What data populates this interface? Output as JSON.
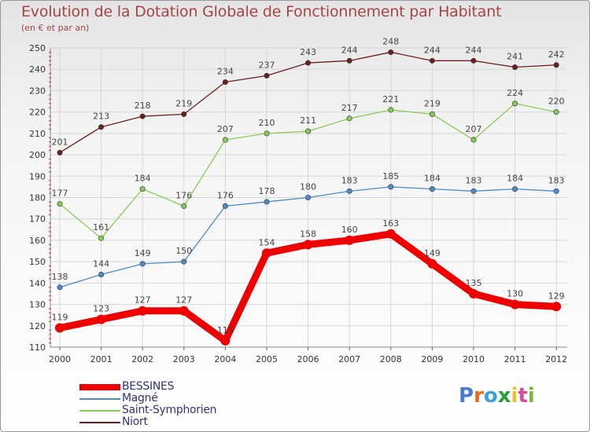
{
  "header": {
    "title": "Evolution de la Dotation Globale de Fonctionnement par Habitant",
    "subtitle": "(en € et par an)"
  },
  "logo": {
    "text": "Proxiti",
    "colors": [
      "#4a7ad8",
      "#e26b1f",
      "#3aa3d6",
      "#2a9d3c",
      "#e9c22a",
      "#d84a9a",
      "#7ab83a"
    ]
  },
  "chart_data": {
    "type": "line",
    "title": "Evolution de la Dotation Globale de Fonctionnement par Habitant",
    "subtitle": "(en € et par an)",
    "xlabel": "",
    "ylabel": "",
    "ylim": [
      110,
      250
    ],
    "y_ticks": [
      110,
      120,
      130,
      140,
      150,
      160,
      170,
      180,
      190,
      200,
      210,
      220,
      230,
      240,
      250
    ],
    "categories": [
      "2000",
      "2001",
      "2002",
      "2003",
      "2004",
      "2005",
      "2006",
      "2007",
      "2008",
      "2009",
      "2010",
      "2011",
      "2012"
    ],
    "legend_position": "bottom-left",
    "series": [
      {
        "name": "BESSINES",
        "color": "#ee0000",
        "values": [
          119,
          123,
          127,
          127,
          113,
          154,
          158,
          160,
          163,
          149,
          135,
          130,
          129
        ]
      },
      {
        "name": "Magné",
        "color": "#4a8ccc",
        "values": [
          138,
          144,
          149,
          150,
          176,
          178,
          180,
          183,
          185,
          184,
          183,
          184,
          183
        ]
      },
      {
        "name": "Saint-Symphorien",
        "color": "#88cc55",
        "values": [
          177,
          161,
          184,
          176,
          207,
          210,
          211,
          217,
          221,
          219,
          207,
          224,
          220
        ]
      },
      {
        "name": "Niort",
        "color": "#6b1f1f",
        "values": [
          201,
          213,
          218,
          219,
          234,
          237,
          243,
          244,
          248,
          244,
          244,
          241,
          242
        ]
      }
    ]
  }
}
